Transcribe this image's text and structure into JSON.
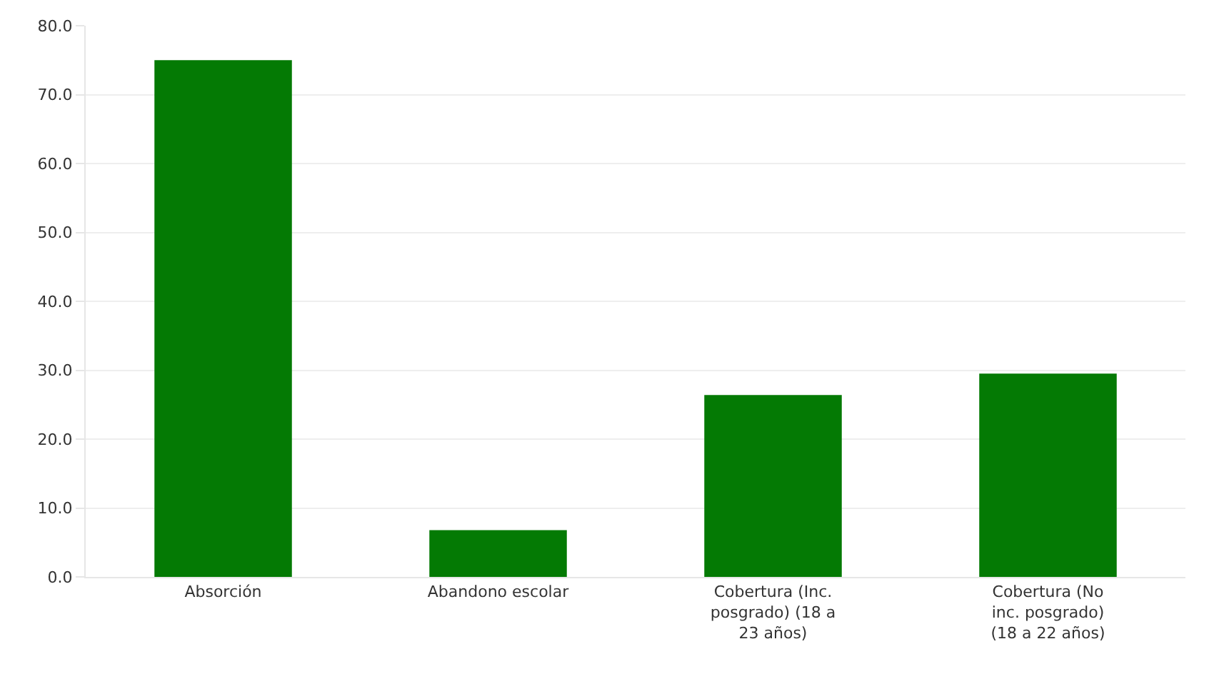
{
  "chart_data": {
    "type": "bar",
    "categories": [
      "Absorción",
      "Abandono escolar",
      "Cobertura (Inc. posgrado) (18 a 23 años)",
      "Cobertura (No inc. posgrado) (18 a 22 años)"
    ],
    "values": [
      75.0,
      6.8,
      26.4,
      29.5
    ],
    "color": "#047a04",
    "ylim": [
      0,
      80
    ],
    "yticks": [
      {
        "value": 0,
        "label": "0.0"
      },
      {
        "value": 10,
        "label": "10.0"
      },
      {
        "value": 20,
        "label": "20.0"
      },
      {
        "value": 30,
        "label": "30.0"
      },
      {
        "value": 40,
        "label": "40.0"
      },
      {
        "value": 50,
        "label": "50.0"
      },
      {
        "value": 60,
        "label": "60.0"
      },
      {
        "value": 70,
        "label": "70.0"
      },
      {
        "value": 80,
        "label": "80.0"
      }
    ],
    "grid": "y",
    "legend": false
  }
}
